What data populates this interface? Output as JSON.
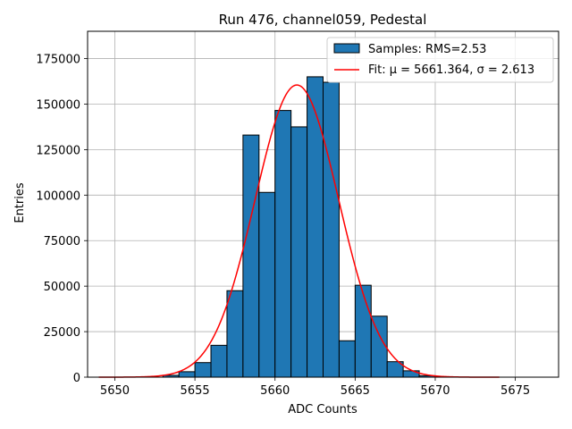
{
  "chart_data": {
    "type": "bar",
    "title": "Run 476, channel059, Pedestal",
    "xlabel": "ADC Counts",
    "ylabel": "Entries",
    "xlim": [
      5648.3,
      5677.7
    ],
    "ylim": [
      0,
      190000
    ],
    "xticks": [
      5650,
      5655,
      5660,
      5665,
      5670,
      5675
    ],
    "yticks": [
      0,
      25000,
      50000,
      75000,
      100000,
      125000,
      150000,
      175000
    ],
    "grid": true,
    "legend_position": "top-right",
    "histogram": {
      "name": "Samples: RMS=2.53",
      "bin_width": 1,
      "bin_starts": [
        5653,
        5654,
        5655,
        5656,
        5657,
        5658,
        5659,
        5660,
        5661,
        5662,
        5663,
        5664,
        5665,
        5666,
        5667,
        5668,
        5669
      ],
      "values": [
        1000,
        3000,
        8000,
        17500,
        47500,
        133000,
        101500,
        146500,
        137500,
        165000,
        162000,
        20000,
        50500,
        33500,
        8500,
        3500,
        800
      ],
      "color": "#1f77b4",
      "edge_color": "#000000"
    },
    "fit": {
      "name": "Fit: μ = 5661.364, σ = 2.613",
      "mu": 5661.364,
      "sigma": 2.613,
      "amplitude": 160500,
      "x_range": [
        5649,
        5674
      ],
      "color": "#ff0000"
    }
  }
}
